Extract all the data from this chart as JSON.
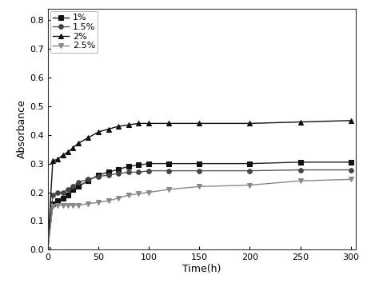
{
  "title": "",
  "xlabel": "Time(h)",
  "ylabel": "Absorbance",
  "xlim": [
    0,
    305
  ],
  "ylim": [
    0.0,
    0.84
  ],
  "yticks": [
    0.0,
    0.1,
    0.2,
    0.3,
    0.4,
    0.5,
    0.6,
    0.7,
    0.8
  ],
  "xticks": [
    0,
    50,
    100,
    150,
    200,
    250,
    300
  ],
  "series": [
    {
      "label": "1%",
      "line_color": "#222222",
      "marker": "s",
      "marker_face": "#111111",
      "marker_edge": "#111111",
      "x": [
        0,
        5,
        10,
        15,
        20,
        25,
        30,
        40,
        50,
        60,
        70,
        80,
        90,
        100,
        120,
        150,
        200,
        250,
        300
      ],
      "y": [
        0.0,
        0.16,
        0.17,
        0.18,
        0.19,
        0.21,
        0.22,
        0.24,
        0.26,
        0.27,
        0.28,
        0.29,
        0.295,
        0.3,
        0.3,
        0.3,
        0.3,
        0.305,
        0.305
      ]
    },
    {
      "label": "1.5%",
      "line_color": "#555555",
      "marker": "o",
      "marker_face": "#444444",
      "marker_edge": "#444444",
      "x": [
        0,
        5,
        10,
        15,
        20,
        25,
        30,
        40,
        50,
        60,
        70,
        80,
        90,
        100,
        120,
        150,
        200,
        250,
        300
      ],
      "y": [
        0.0,
        0.19,
        0.2,
        0.2,
        0.21,
        0.22,
        0.235,
        0.245,
        0.255,
        0.26,
        0.265,
        0.27,
        0.27,
        0.275,
        0.275,
        0.275,
        0.275,
        0.278,
        0.278
      ]
    },
    {
      "label": "2%",
      "line_color": "#111111",
      "marker": "^",
      "marker_face": "#111111",
      "marker_edge": "#111111",
      "x": [
        0,
        5,
        10,
        15,
        20,
        25,
        30,
        40,
        50,
        60,
        70,
        80,
        90,
        100,
        120,
        150,
        200,
        250,
        300
      ],
      "y": [
        0.0,
        0.31,
        0.315,
        0.33,
        0.34,
        0.355,
        0.37,
        0.39,
        0.41,
        0.42,
        0.43,
        0.435,
        0.44,
        0.44,
        0.44,
        0.44,
        0.44,
        0.445,
        0.45
      ]
    },
    {
      "label": "2.5%",
      "line_color": "#888888",
      "marker": "v",
      "marker_face": "#888888",
      "marker_edge": "#888888",
      "x": [
        0,
        5,
        10,
        15,
        20,
        25,
        30,
        40,
        50,
        60,
        70,
        80,
        90,
        100,
        120,
        150,
        200,
        250,
        300
      ],
      "y": [
        0.0,
        0.15,
        0.155,
        0.155,
        0.155,
        0.155,
        0.155,
        0.16,
        0.165,
        0.17,
        0.18,
        0.19,
        0.195,
        0.2,
        0.21,
        0.22,
        0.225,
        0.24,
        0.245
      ]
    }
  ],
  "background_color": "#ffffff",
  "linewidth": 1.0,
  "markersize": 4,
  "figsize": [
    4.59,
    3.59
  ],
  "dpi": 100
}
